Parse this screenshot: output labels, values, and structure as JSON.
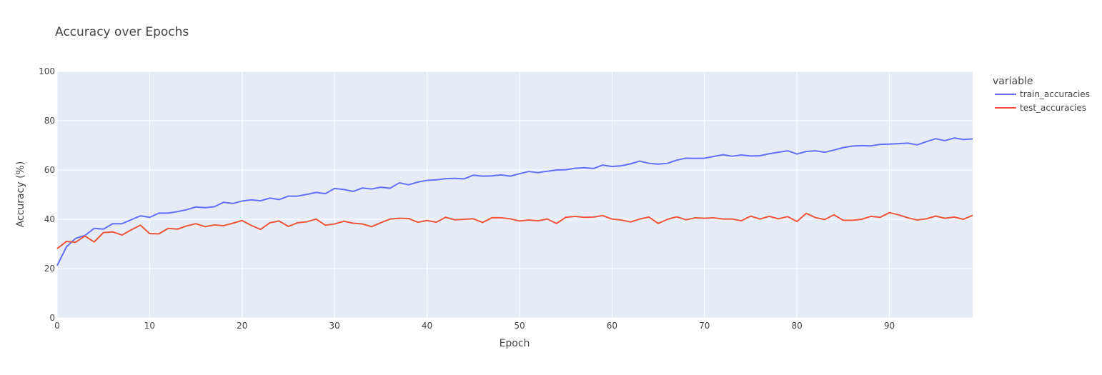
{
  "chart_data": {
    "type": "line",
    "title": "Accuracy over Epochs",
    "xlabel": "Epoch",
    "ylabel": "Accuracy (%)",
    "xlim": [
      0,
      99
    ],
    "ylim": [
      0,
      100
    ],
    "xticks": [
      0,
      10,
      20,
      30,
      40,
      50,
      60,
      70,
      80,
      90
    ],
    "yticks": [
      0,
      20,
      40,
      60,
      80,
      100
    ],
    "grid": true,
    "legend": {
      "title": "variable",
      "position": "right"
    },
    "colors": {
      "plot_bg": "#E5ECF6",
      "grid": "#ffffff"
    },
    "series": [
      {
        "name": "train_accuracies",
        "color": "#636EFA",
        "values": [
          21.2,
          28.8,
          32.3,
          33.4,
          36.3,
          36.0,
          38.2,
          38.2,
          39.8,
          41.4,
          40.8,
          42.5,
          42.5,
          43.1,
          43.9,
          45.0,
          44.7,
          45.1,
          46.9,
          46.4,
          47.4,
          47.9,
          47.5,
          48.6,
          48.0,
          49.4,
          49.4,
          50.1,
          50.9,
          50.4,
          52.5,
          52.1,
          51.3,
          52.7,
          52.3,
          53.0,
          52.6,
          54.8,
          54.0,
          55.1,
          55.8,
          56.0,
          56.5,
          56.6,
          56.4,
          57.9,
          57.5,
          57.6,
          58.0,
          57.5,
          58.5,
          59.4,
          58.9,
          59.5,
          60.0,
          60.1,
          60.7,
          60.9,
          60.6,
          62.0,
          61.4,
          61.7,
          62.5,
          63.6,
          62.7,
          62.4,
          62.7,
          64.0,
          64.8,
          64.7,
          64.8,
          65.5,
          66.2,
          65.6,
          66.1,
          65.7,
          65.8,
          66.6,
          67.2,
          67.8,
          66.5,
          67.5,
          67.8,
          67.2,
          68.1,
          69.1,
          69.7,
          69.9,
          69.8,
          70.4,
          70.5,
          70.7,
          70.9,
          70.2,
          71.5,
          72.7,
          71.9,
          73.0,
          72.4,
          72.6
        ]
      },
      {
        "name": "test_accuracies",
        "color": "#EF553B",
        "values": [
          28.1,
          31.0,
          30.7,
          33.2,
          30.8,
          34.6,
          34.9,
          33.6,
          35.7,
          37.6,
          34.2,
          34.1,
          36.3,
          36.0,
          37.3,
          38.2,
          37.0,
          37.7,
          37.4,
          38.4,
          39.5,
          37.5,
          35.9,
          38.6,
          39.3,
          37.1,
          38.6,
          39.0,
          40.1,
          37.6,
          38.1,
          39.2,
          38.4,
          38.1,
          37.0,
          38.6,
          40.1,
          40.4,
          40.3,
          38.8,
          39.5,
          38.8,
          40.8,
          39.8,
          40.0,
          40.2,
          38.7,
          40.6,
          40.6,
          40.2,
          39.3,
          39.7,
          39.4,
          40.1,
          38.3,
          40.8,
          41.2,
          40.8,
          40.9,
          41.5,
          40.1,
          39.7,
          38.9,
          40.1,
          40.9,
          38.3,
          40.0,
          41.0,
          39.8,
          40.6,
          40.4,
          40.6,
          40.1,
          40.1,
          39.4,
          41.3,
          40.1,
          41.2,
          40.2,
          41.1,
          39.1,
          42.4,
          40.7,
          39.9,
          41.8,
          39.6,
          39.6,
          40.0,
          41.2,
          40.8,
          42.7,
          41.8,
          40.6,
          39.7,
          40.2,
          41.3,
          40.4,
          40.9,
          40.0,
          41.6
        ]
      }
    ]
  }
}
